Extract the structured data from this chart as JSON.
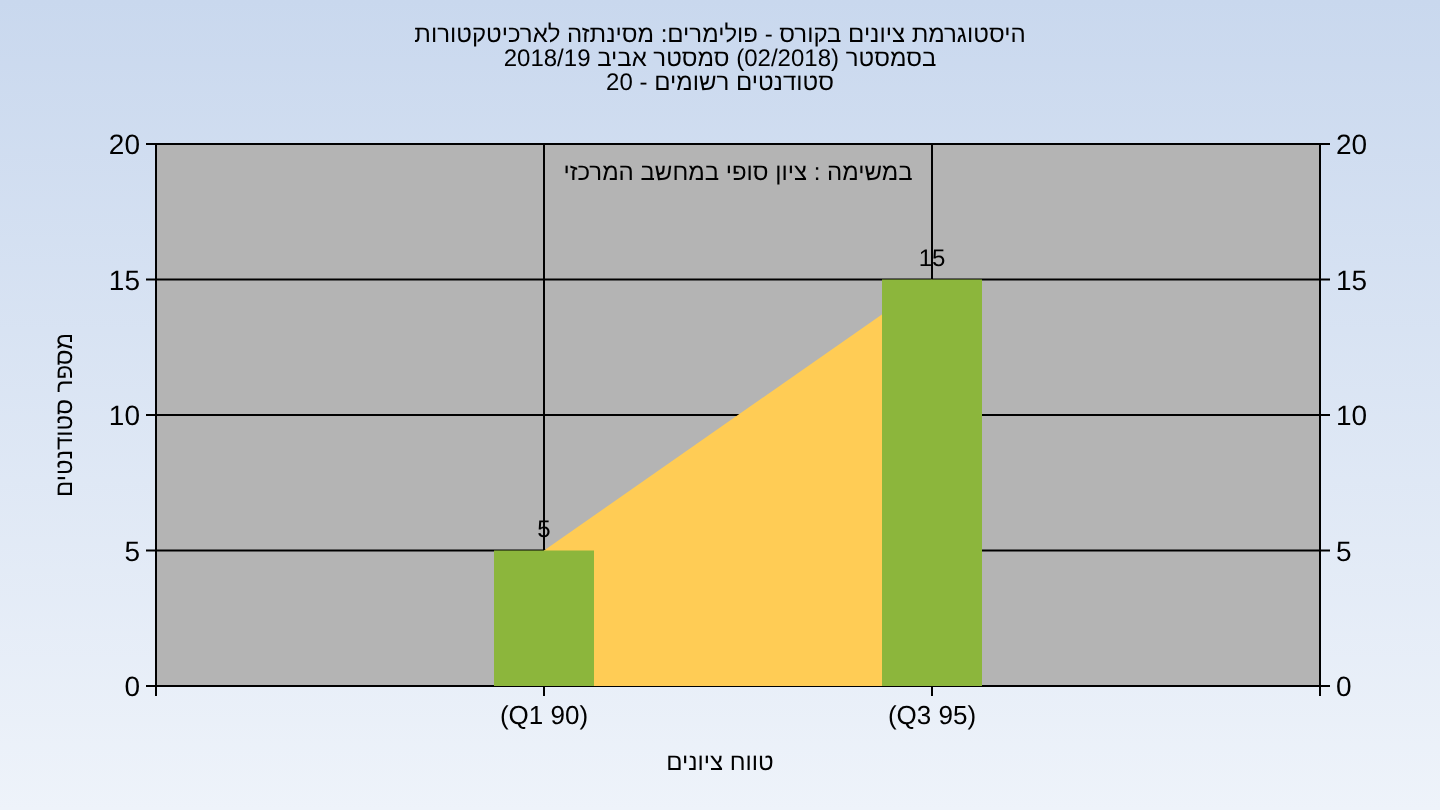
{
  "chart_data": {
    "type": "bar",
    "title": "היסטוגרמת ציונים בקורס - פולימרים: מסינתזה לארכיטקטורות",
    "subtitle": "בסמסטר  (02/2018)  סמסטר אביב 2018/19\nסטודנטים רשומים - 20",
    "xlabel": "טווח ציונים",
    "ylabel": "מספר סטודנטים",
    "annotations": [
      "במשימה : ציון סופי במחשב המרכזי"
    ],
    "categories": [
      "(Q1 90)",
      "(Q3 95)"
    ],
    "series": [
      {
        "type": "area",
        "color": "#ffcc55",
        "values": [
          5,
          15
        ]
      },
      {
        "color": "#8cb63c",
        "values": [
          5,
          15
        ],
        "data_labels": true
      }
    ],
    "ylim": [
      0,
      20
    ],
    "yticks": [
      0,
      5,
      10,
      15,
      20
    ],
    "y2lim": [
      0,
      20
    ],
    "y2ticks": [
      0,
      5,
      10,
      15,
      20
    ],
    "grid": true
  }
}
